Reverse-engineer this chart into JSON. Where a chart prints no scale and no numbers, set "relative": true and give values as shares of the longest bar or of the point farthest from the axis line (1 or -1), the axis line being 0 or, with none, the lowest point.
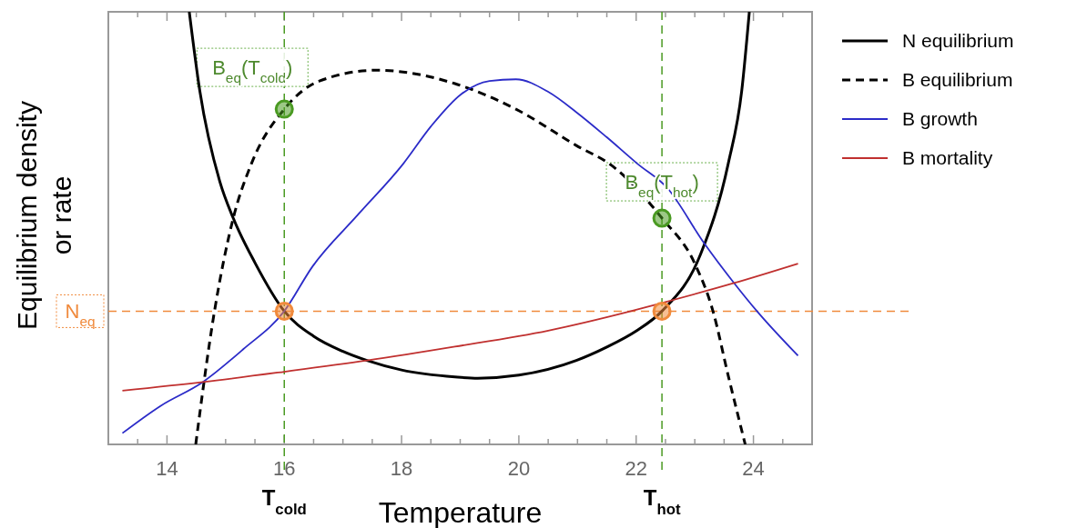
{
  "chart_data": {
    "type": "line",
    "relative": true,
    "xlabel": "Temperature",
    "ylabel": "Equilibrium density or rate",
    "xlim": [
      13,
      25
    ],
    "xticks": [
      {
        "value": 13.5,
        "label": null
      },
      14,
      {
        "value": 14.5,
        "label": null
      },
      {
        "value": 15,
        "label": null
      },
      {
        "value": 15.5,
        "label": null
      },
      16,
      {
        "value": 16.5,
        "label": null
      },
      {
        "value": 17,
        "label": null
      },
      {
        "value": 17.5,
        "label": null
      },
      18,
      {
        "value": 18.5,
        "label": null
      },
      {
        "value": 19,
        "label": null
      },
      {
        "value": 19.5,
        "label": null
      },
      20,
      {
        "value": 20.5,
        "label": null
      },
      {
        "value": 21,
        "label": null
      },
      {
        "value": 21.5,
        "label": null
      },
      22,
      {
        "value": 22.5,
        "label": null
      },
      {
        "value": 23,
        "label": null
      },
      {
        "value": 23.5,
        "label": null
      },
      24,
      {
        "value": 24.5,
        "label": null
      }
    ],
    "legend": "right",
    "grid": false,
    "series": [
      {
        "name": "N equilibrium",
        "color": "#000000",
        "line_style": "solid",
        "marker": "none",
        "x": [
          14.38,
          14.56,
          14.9,
          15.13,
          15.5,
          16,
          16.5,
          17,
          17.41,
          18,
          18.91,
          19.3,
          20,
          20.98,
          21.5,
          22,
          22.44,
          23.1,
          23.57,
          23.8,
          23.93
        ],
        "values": [
          1.0,
          0.817,
          0.608,
          0.523,
          0.42,
          0.308,
          0.25,
          0.215,
          0.194,
          0.172,
          0.156,
          0.153,
          0.16,
          0.194,
          0.225,
          0.262,
          0.308,
          0.44,
          0.649,
          0.817,
          1.0
        ]
      },
      {
        "name": "B equilibrium",
        "color": "#000000",
        "line_style": "dashed",
        "marker": "none",
        "x": [
          14.49,
          14.81,
          15.13,
          15.44,
          16,
          16.6,
          17.57,
          18.91,
          19.95,
          20.98,
          21.6,
          22.44,
          23.0,
          23.31,
          23.57,
          23.86
        ],
        "values": [
          0,
          0.308,
          0.523,
          0.649,
          0.775,
          0.84,
          0.865,
          0.834,
          0.775,
          0.691,
          0.643,
          0.523,
          0.418,
          0.308,
          0.159,
          0
        ]
      },
      {
        "name": "B growth",
        "color": "#2b2bc8",
        "line_style": "solid",
        "marker": "none",
        "x": [
          13.24,
          13.89,
          14.61,
          15.3,
          16,
          16.48,
          17.25,
          18.03,
          18.5,
          19.02,
          19.5,
          19.95,
          20.5,
          20.98,
          21.5,
          22.02,
          22.53,
          23.15,
          23.67,
          24.06,
          24.76
        ],
        "values": [
          0.026,
          0.089,
          0.144,
          0.22,
          0.308,
          0.411,
          0.53,
          0.649,
          0.735,
          0.81,
          0.84,
          0.844,
          0.815,
          0.768,
          0.71,
          0.649,
          0.593,
          0.467,
          0.373,
          0.308,
          0.205
        ]
      },
      {
        "name": "B mortality",
        "color": "#c0302f",
        "line_style": "solid",
        "marker": "none",
        "x": [
          13.24,
          14.61,
          16,
          17.41,
          18.91,
          20.5,
          21.91,
          22.44,
          23.67,
          24.76
        ],
        "values": [
          0.124,
          0.144,
          0.168,
          0.194,
          0.226,
          0.263,
          0.308,
          0.327,
          0.373,
          0.418
        ]
      },
      {
        "type": "scatter",
        "color": "#4a9a22",
        "marker": "circle",
        "x": [
          16,
          22.44
        ],
        "values": [
          0.775,
          0.523
        ]
      },
      {
        "type": "scatter",
        "color": "#f08a3c",
        "marker": "circle",
        "x": [
          16,
          22.44
        ],
        "values": [
          0.308,
          0.308
        ]
      }
    ],
    "ref_lines": [
      {
        "axis": "y",
        "value": 0.308,
        "label": "N$_{eq}$",
        "color": "#f08a3c",
        "line_style": "dashed"
      },
      {
        "axis": "x",
        "value": 16,
        "label": "T$_{cold}$",
        "color": "#4a9a22",
        "line_style": "dashed"
      },
      {
        "axis": "x",
        "value": 22.44,
        "label": "T$_{hot}$",
        "color": "#4a9a22",
        "line_style": "dashed"
      }
    ],
    "annotations": [
      {
        "text": "B$_{eq}$(T$_{cold}$)",
        "x": 16,
        "y": 0.775
      },
      {
        "text": "B$_{eq}$(T$_{hot}$)",
        "x": 22.44,
        "y": 0.523
      }
    ]
  }
}
